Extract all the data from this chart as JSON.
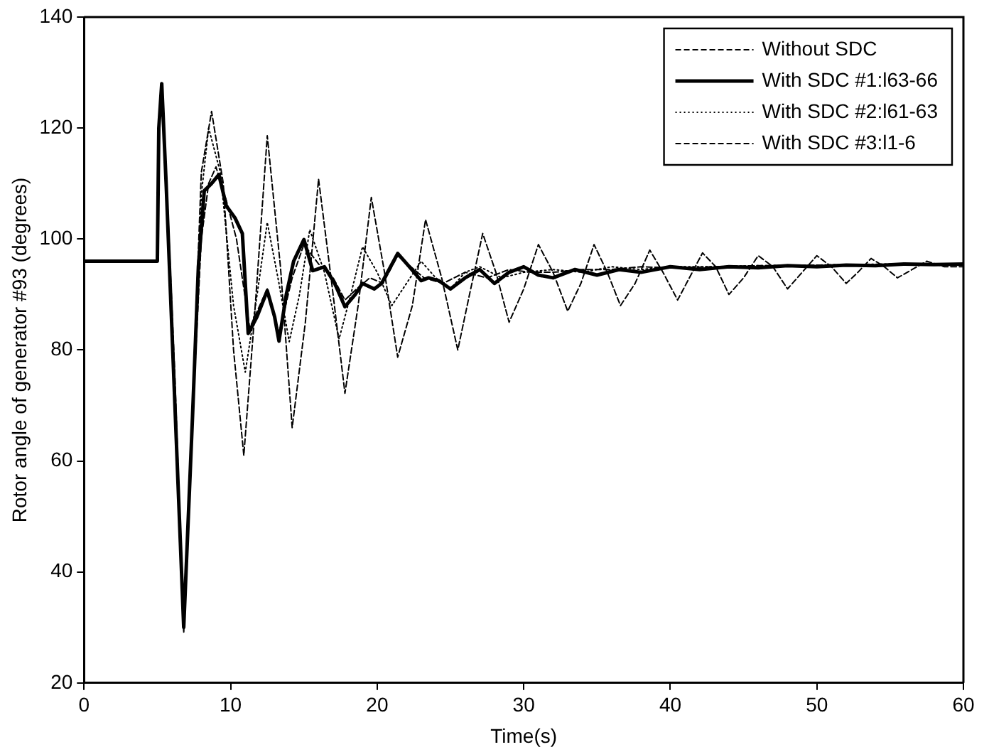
{
  "chart_data": {
    "type": "line",
    "xlabel": "Time(s)",
    "ylabel": "Rotor angle of generator #93 (degrees)",
    "xlim": [
      0,
      60
    ],
    "xticks": [
      0,
      10,
      20,
      30,
      40,
      50,
      60
    ],
    "ylim": [
      20,
      140
    ],
    "yticks": [
      20,
      40,
      60,
      80,
      100,
      120,
      140
    ],
    "grid": false,
    "legend": "top right",
    "marker": "none",
    "series": [
      {
        "name": "Without SDC",
        "color": "#000000",
        "line_style": "dashed",
        "x": [
          0,
          5,
          5.1,
          5.3,
          5.6,
          6.2,
          6.8,
          7.4,
          8.0,
          8.7,
          9.5,
          10.2,
          10.9,
          11.6,
          12.5,
          13.4,
          14.2,
          15.1,
          16.0,
          16.9,
          17.8,
          18.7,
          19.6,
          20.5,
          21.4,
          22.4,
          23.3,
          24.4,
          25.5,
          26.3,
          27.2,
          28.1,
          29.0,
          30.0,
          31.0,
          32.0,
          33.0,
          33.9,
          34.8,
          35.7,
          36.6,
          37.6,
          38.6,
          39.5,
          40.5,
          41.3,
          42.2,
          43.1,
          44.0,
          45.0,
          46.0,
          47.0,
          48.0,
          49.0,
          50.0,
          51.0,
          52.0,
          52.8,
          53.7,
          54.6,
          55.5,
          56.5,
          57.5,
          58.7,
          60
        ],
        "values": [
          96,
          96,
          120,
          128,
          112,
          75,
          29,
          70,
          112,
          123,
          110,
          80,
          61,
          85,
          118.6,
          95,
          66,
          85,
          110.8,
          92,
          72.2,
          88,
          107.5,
          94,
          78.7,
          88,
          103.5,
          93,
          80,
          90,
          101,
          94,
          85,
          91,
          99,
          94,
          87,
          92,
          99,
          94,
          88,
          92,
          98,
          94,
          89,
          93,
          97.5,
          95,
          90,
          93,
          97,
          95,
          91,
          94,
          97,
          95,
          92,
          94,
          96.5,
          95,
          93,
          94.5,
          96,
          95,
          95
        ]
      },
      {
        "name": "With SDC #1:l63-66",
        "color": "#000000",
        "line_style": "solid",
        "x": [
          0,
          5,
          5.1,
          5.3,
          5.6,
          6.2,
          6.8,
          7.4,
          7.8,
          8.2,
          8.7,
          9.2,
          9.7,
          10.3,
          10.8,
          11.2,
          11.8,
          12.5,
          13.0,
          13.3,
          13.8,
          14.3,
          15.0,
          15.6,
          16.4,
          17.1,
          17.8,
          18.5,
          19.0,
          19.8,
          20.3,
          21.4,
          22.2,
          23.0,
          23.5,
          24.2,
          25.0,
          26.0,
          27.0,
          28.0,
          29.0,
          30.0,
          31.0,
          32.0,
          33.5,
          35.0,
          36.5,
          38.0,
          40.0,
          42.0,
          44.0,
          46.0,
          48.0,
          50.0,
          52.0,
          54.0,
          56.0,
          58.0,
          60
        ],
        "values": [
          96,
          96,
          120,
          128,
          110,
          70,
          30,
          68,
          95,
          108.7,
          110,
          111.6,
          106,
          103.8,
          101,
          83,
          86,
          90.7,
          86,
          81.6,
          90,
          96,
          99.9,
          94.3,
          95,
          92,
          87.8,
          90,
          92,
          91,
          92,
          97.4,
          95,
          92.5,
          93,
          92.5,
          91,
          93,
          94.5,
          92,
          94,
          95,
          93.5,
          93,
          94.5,
          93.5,
          94.5,
          94,
          95,
          94.5,
          95,
          94.8,
          95.2,
          95,
          95.3,
          95.2,
          95.5,
          95.4,
          95.5
        ]
      },
      {
        "name": "With SDC #2:l61-63",
        "color": "#000000",
        "line_style": "dotted",
        "x": [
          0,
          5,
          5.1,
          5.3,
          5.6,
          6.2,
          6.8,
          7.4,
          8.0,
          8.5,
          9.3,
          10.2,
          11.0,
          11.7,
          12.5,
          13.3,
          14.0,
          14.7,
          15.4,
          16.4,
          17.4,
          18.2,
          19.0,
          20.0,
          21.0,
          22.0,
          23.0,
          24.0,
          25.0,
          26.0,
          27.0,
          28.5,
          30.0,
          32.0,
          34.0,
          36.0,
          38.0,
          40.0,
          43.0,
          46.0,
          50.0,
          55.0,
          60
        ],
        "values": [
          96,
          96,
          120,
          128,
          112,
          72,
          31,
          70,
          108,
          120,
          112,
          88,
          76,
          88,
          103,
          92,
          81.5,
          90,
          101.7,
          94,
          82,
          90,
          98.6,
          94,
          88,
          92,
          96,
          93,
          91,
          94,
          95,
          93,
          94,
          94.5,
          94,
          95,
          94.5,
          95,
          95,
          95.2,
          95.3,
          95.5,
          95.5
        ]
      },
      {
        "name": "With SDC #3:l1-6",
        "color": "#000000",
        "line_style": "dashed",
        "x": [
          0,
          5,
          5.1,
          5.3,
          5.6,
          6.2,
          6.8,
          7.4,
          8.0,
          8.5,
          9.0,
          9.7,
          10.4,
          11.3,
          12.5,
          13.3,
          14.2,
          15.0,
          16.0,
          17.0,
          17.8,
          18.6,
          19.5,
          20.4,
          21.4,
          22.3,
          23.2,
          24.5,
          26.0,
          27.5,
          29.0,
          30.5,
          32.0,
          34.0,
          36.0,
          38.0,
          40.0,
          43.0,
          46.0,
          50.0,
          55.0,
          60
        ],
        "values": [
          96,
          96,
          120,
          127,
          110,
          70,
          30,
          68,
          100,
          110,
          113,
          107,
          100,
          84,
          91,
          83,
          93,
          99,
          95.5,
          93,
          89,
          91,
          93,
          92,
          97,
          95,
          93,
          92,
          94,
          93,
          94.5,
          94,
          94,
          94.5,
          94.5,
          95,
          94.8,
          95,
          95.2,
          95.3,
          95.4,
          95.5
        ]
      }
    ]
  }
}
